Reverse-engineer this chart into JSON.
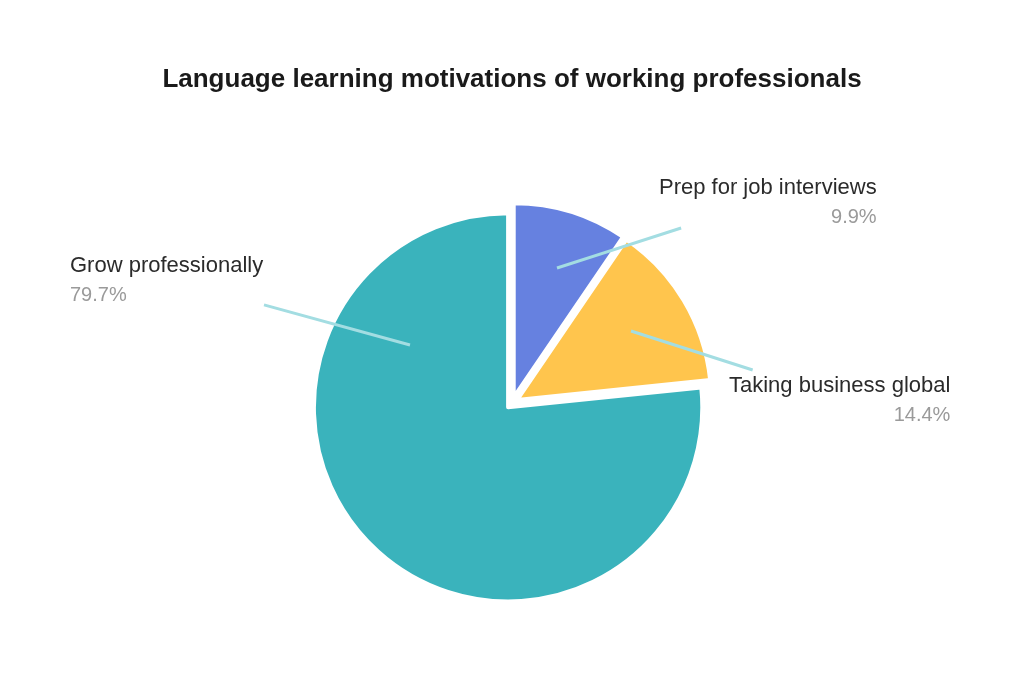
{
  "chart_data": {
    "type": "pie",
    "title": "Language learning motivations of working professionals",
    "categories": [
      "Prep for job interviews",
      "Taking business global",
      "Grow professionally"
    ],
    "values": [
      9.9,
      14.4,
      79.7
    ],
    "value_labels": [
      "9.9%",
      "14.4%",
      "79.7%"
    ],
    "colors": [
      "#6681e0",
      "#ffc54d",
      "#3ab3bc"
    ]
  }
}
